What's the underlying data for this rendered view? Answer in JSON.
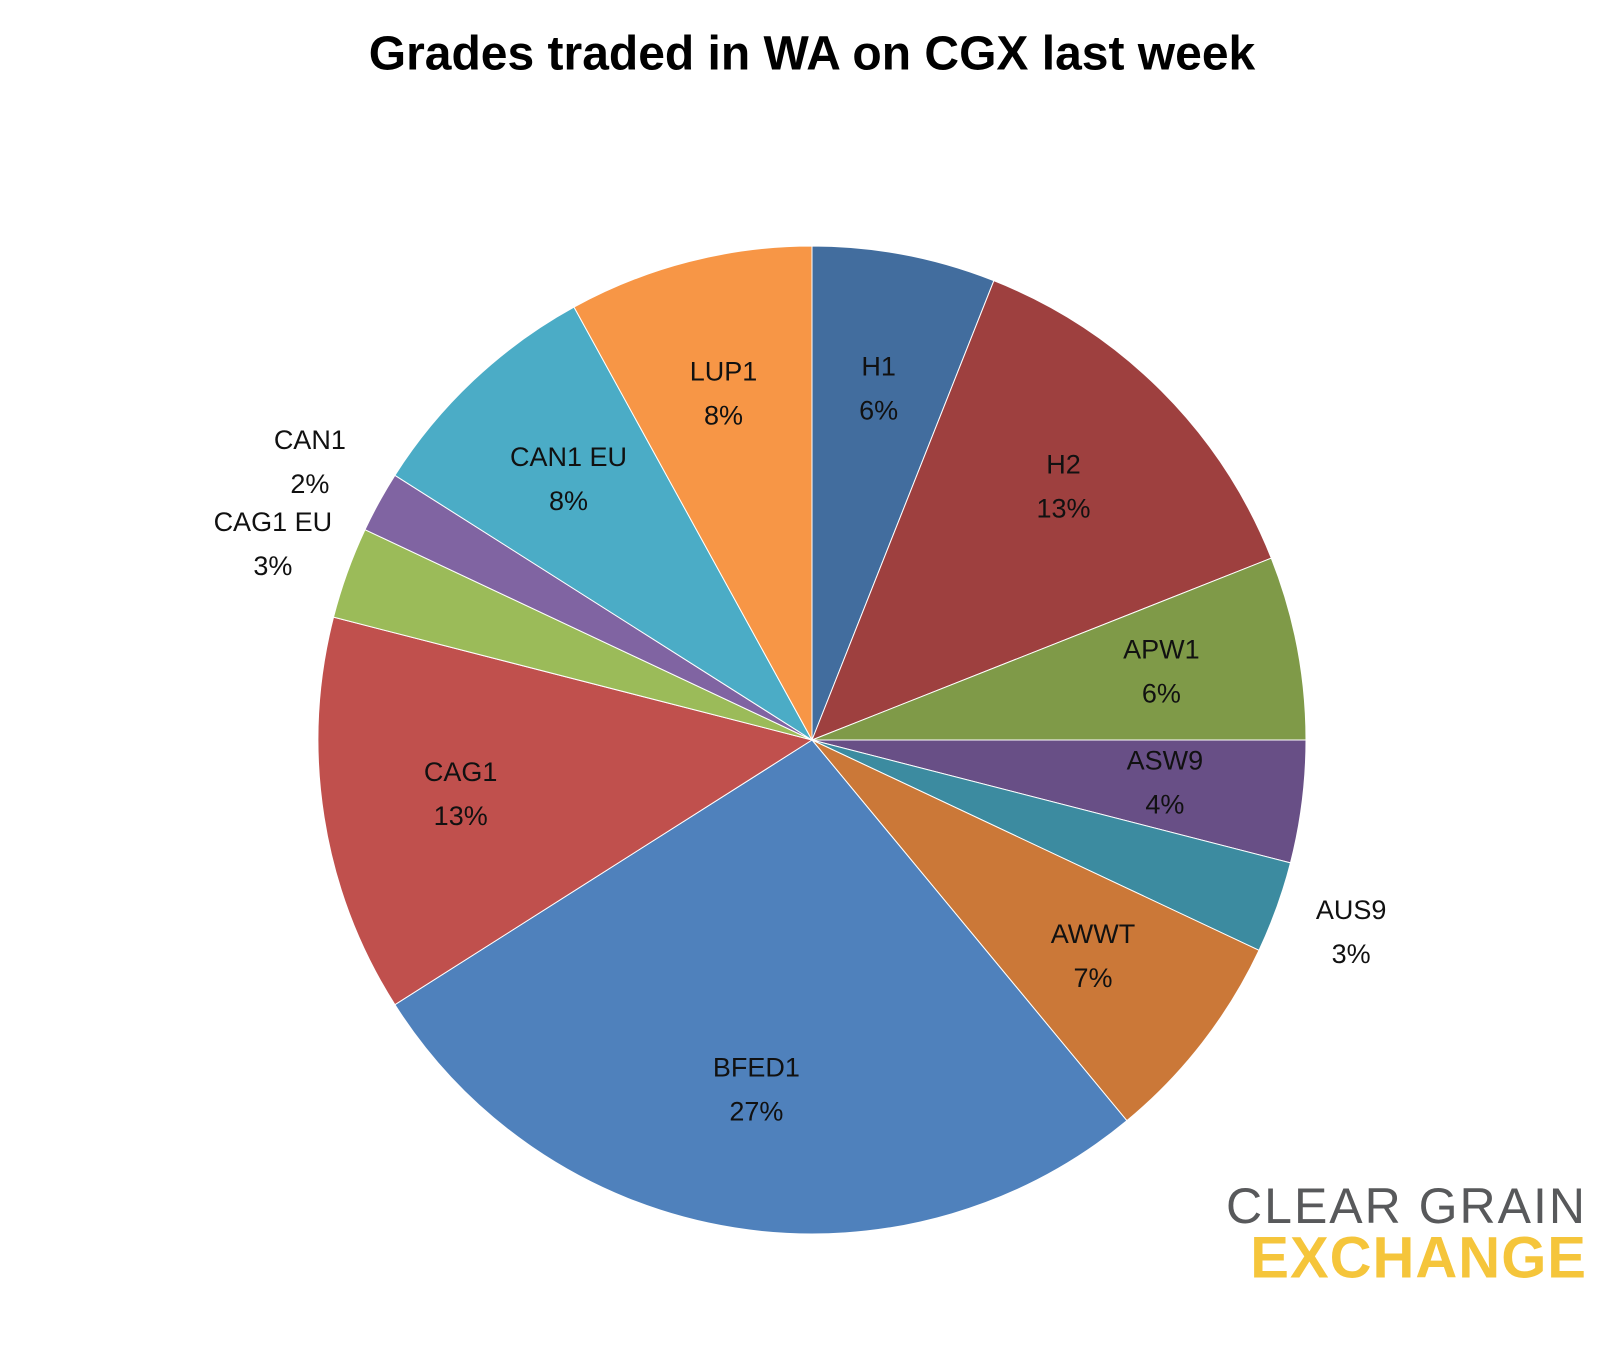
{
  "chart_data": {
    "type": "pie",
    "title": "Grades traded in WA on CGX last week",
    "categories": [
      "H1",
      "H2",
      "APW1",
      "ASW9",
      "AUS9",
      "AWWT",
      "BFED1",
      "CAG1",
      "CAG1 EU",
      "CAN1",
      "CAN1 EU",
      "LUP1"
    ],
    "values": [
      6,
      13,
      6,
      4,
      3,
      7,
      27,
      13,
      3,
      2,
      8,
      8
    ],
    "value_labels": [
      "6%",
      "13%",
      "6%",
      "4%",
      "3%",
      "7%",
      "27%",
      "13%",
      "3%",
      "2%",
      "8%",
      "8%"
    ],
    "colors": [
      "#426d9e",
      "#9e403f",
      "#7f9a48",
      "#684f86",
      "#3c8ba0",
      "#cb7838",
      "#4f81bc",
      "#c0504d",
      "#9bbb59",
      "#8064a2",
      "#4bacc6",
      "#f79646"
    ],
    "logo": {
      "line1": "CLEAR GRAIN",
      "line2": "EXCHANGE"
    }
  }
}
